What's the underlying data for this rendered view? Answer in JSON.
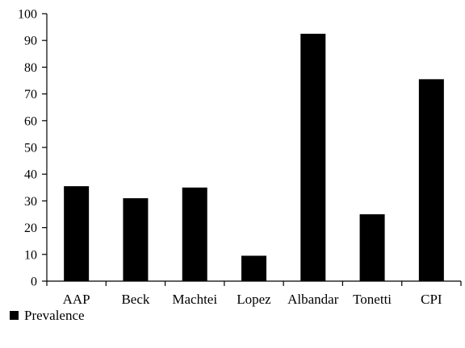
{
  "chart_data": {
    "type": "bar",
    "title": "",
    "xlabel": "",
    "ylabel": "",
    "categories": [
      "AAP",
      "Beck",
      "Machtei",
      "Lopez",
      "Albandar",
      "Tonetti",
      "CPI"
    ],
    "series": [
      {
        "name": "Prevalence",
        "values": [
          35.5,
          31,
          35,
          9.5,
          92.5,
          25,
          75.5
        ],
        "color": "#000000"
      }
    ],
    "ylim": [
      0,
      100
    ],
    "yticks": [
      0,
      10,
      20,
      30,
      40,
      50,
      60,
      70,
      80,
      90,
      100
    ],
    "grid": false,
    "legend": "bottom-left"
  }
}
